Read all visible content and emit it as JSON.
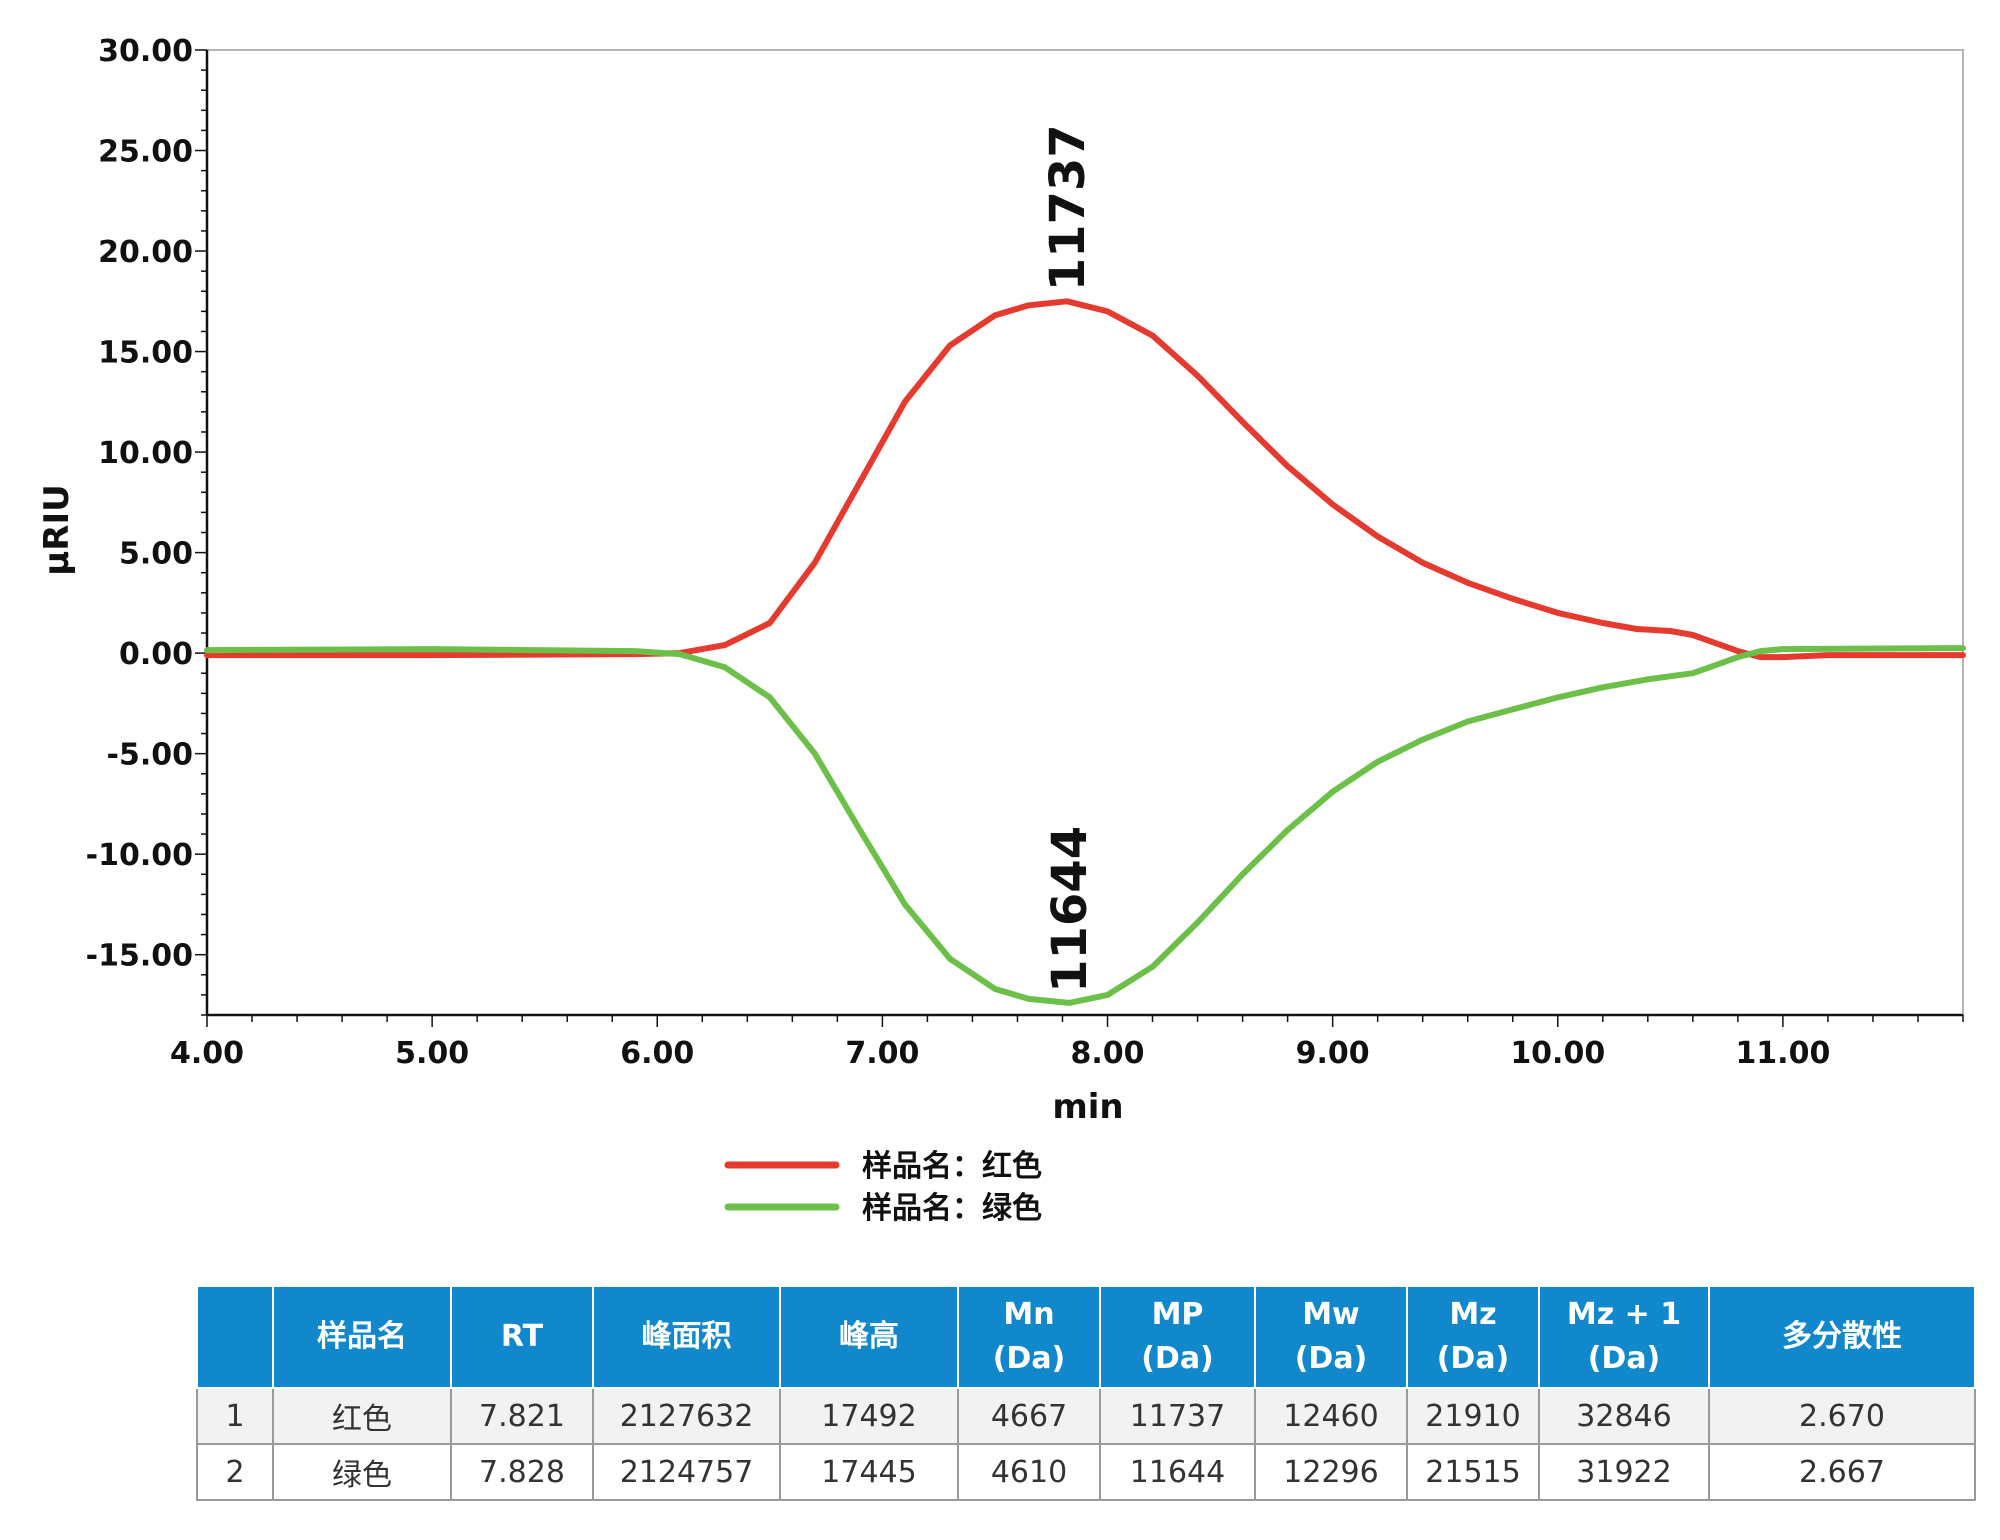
{
  "chart_data": {
    "type": "line",
    "xlabel": "min",
    "ylabel": "µRIU",
    "xlim": [
      4.0,
      11.8
    ],
    "ylim": [
      -18.0,
      30.0
    ],
    "x_ticks": [
      "4.00",
      "5.00",
      "6.00",
      "7.00",
      "8.00",
      "9.00",
      "10.00",
      "11.00"
    ],
    "y_ticks": [
      "30.00",
      "25.00",
      "20.00",
      "15.00",
      "10.00",
      "5.00",
      "0.00",
      "-5.00",
      "-10.00",
      "-15.00"
    ],
    "grid": false,
    "legend_position": "bottom-center",
    "series": [
      {
        "name": "样品名：红色",
        "color": "#e63a2e",
        "points": [
          [
            4.0,
            -0.1
          ],
          [
            5.0,
            -0.1
          ],
          [
            5.9,
            -0.05
          ],
          [
            6.1,
            0.0
          ],
          [
            6.3,
            0.4
          ],
          [
            6.5,
            1.5
          ],
          [
            6.7,
            4.5
          ],
          [
            6.9,
            8.5
          ],
          [
            7.1,
            12.5
          ],
          [
            7.3,
            15.3
          ],
          [
            7.5,
            16.8
          ],
          [
            7.65,
            17.3
          ],
          [
            7.82,
            17.5
          ],
          [
            8.0,
            17.0
          ],
          [
            8.2,
            15.8
          ],
          [
            8.4,
            13.8
          ],
          [
            8.6,
            11.5
          ],
          [
            8.8,
            9.3
          ],
          [
            9.0,
            7.4
          ],
          [
            9.2,
            5.8
          ],
          [
            9.4,
            4.5
          ],
          [
            9.6,
            3.5
          ],
          [
            9.8,
            2.7
          ],
          [
            10.0,
            2.0
          ],
          [
            10.2,
            1.5
          ],
          [
            10.35,
            1.2
          ],
          [
            10.5,
            1.1
          ],
          [
            10.6,
            0.9
          ],
          [
            10.7,
            0.5
          ],
          [
            10.8,
            0.1
          ],
          [
            10.9,
            -0.2
          ],
          [
            11.0,
            -0.2
          ],
          [
            11.2,
            -0.1
          ],
          [
            11.8,
            -0.1
          ]
        ]
      },
      {
        "name": "样品名：绿色",
        "color": "#6cc04a",
        "points": [
          [
            4.0,
            0.15
          ],
          [
            5.0,
            0.2
          ],
          [
            5.9,
            0.1
          ],
          [
            6.1,
            -0.05
          ],
          [
            6.3,
            -0.7
          ],
          [
            6.5,
            -2.2
          ],
          [
            6.7,
            -5.0
          ],
          [
            6.9,
            -8.8
          ],
          [
            7.1,
            -12.5
          ],
          [
            7.3,
            -15.2
          ],
          [
            7.5,
            -16.7
          ],
          [
            7.65,
            -17.2
          ],
          [
            7.83,
            -17.4
          ],
          [
            8.0,
            -17.0
          ],
          [
            8.2,
            -15.6
          ],
          [
            8.4,
            -13.4
          ],
          [
            8.6,
            -11.0
          ],
          [
            8.8,
            -8.8
          ],
          [
            9.0,
            -6.9
          ],
          [
            9.2,
            -5.4
          ],
          [
            9.4,
            -4.3
          ],
          [
            9.6,
            -3.4
          ],
          [
            9.8,
            -2.8
          ],
          [
            10.0,
            -2.2
          ],
          [
            10.2,
            -1.7
          ],
          [
            10.4,
            -1.3
          ],
          [
            10.6,
            -1.0
          ],
          [
            10.7,
            -0.6
          ],
          [
            10.8,
            -0.2
          ],
          [
            10.9,
            0.1
          ],
          [
            11.0,
            0.2
          ],
          [
            11.8,
            0.25
          ]
        ]
      }
    ],
    "annotations": [
      {
        "text": "11737",
        "x": 7.82,
        "y": 17.5
      },
      {
        "text": "11644",
        "x": 7.83,
        "y": -17.4
      }
    ]
  },
  "table": {
    "headers": [
      {
        "line1": "",
        "line2": ""
      },
      {
        "line1": "样品名",
        "line2": ""
      },
      {
        "line1": "RT",
        "line2": ""
      },
      {
        "line1": "峰面积",
        "line2": ""
      },
      {
        "line1": "峰高",
        "line2": ""
      },
      {
        "line1": "Mn",
        "line2": "(Da)"
      },
      {
        "line1": "MP",
        "line2": "(Da)"
      },
      {
        "line1": "Mw",
        "line2": "(Da)"
      },
      {
        "line1": "Mz",
        "line2": "(Da)"
      },
      {
        "line1": "Mz + 1",
        "line2": "(Da)"
      },
      {
        "line1": "多分散性",
        "line2": ""
      }
    ],
    "rows": [
      [
        "1",
        "红色",
        "7.821",
        "2127632",
        "17492",
        "4667",
        "11737",
        "12460",
        "21910",
        "32846",
        "2.670"
      ],
      [
        "2",
        "绿色",
        "7.828",
        "2124757",
        "17445",
        "4610",
        "11644",
        "12296",
        "21515",
        "31922",
        "2.667"
      ]
    ]
  }
}
